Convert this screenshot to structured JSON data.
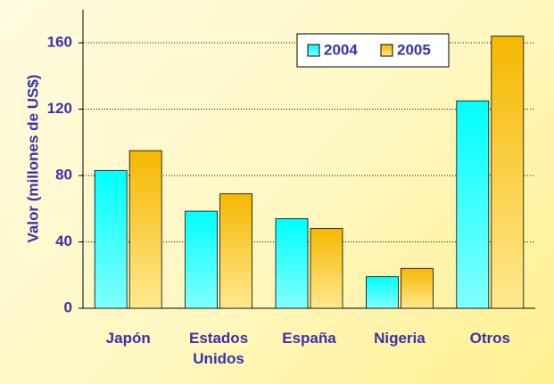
{
  "chart_data": {
    "type": "bar",
    "y_label": "Valor (millones de US$)",
    "categories": [
      "Japón",
      "Estados Unidos",
      "España",
      "Nigeria",
      "Otros"
    ],
    "series": [
      {
        "name": "2004",
        "color": "#00f0f0",
        "values": [
          83,
          58.5,
          54,
          19,
          125
        ]
      },
      {
        "name": "2005",
        "color": "#f5b800",
        "values": [
          95,
          69,
          48,
          24,
          164
        ]
      }
    ],
    "ylim": [
      0,
      180
    ],
    "yticks": [
      0,
      40,
      80,
      120,
      160
    ],
    "grid": true,
    "legend": "top-right"
  }
}
